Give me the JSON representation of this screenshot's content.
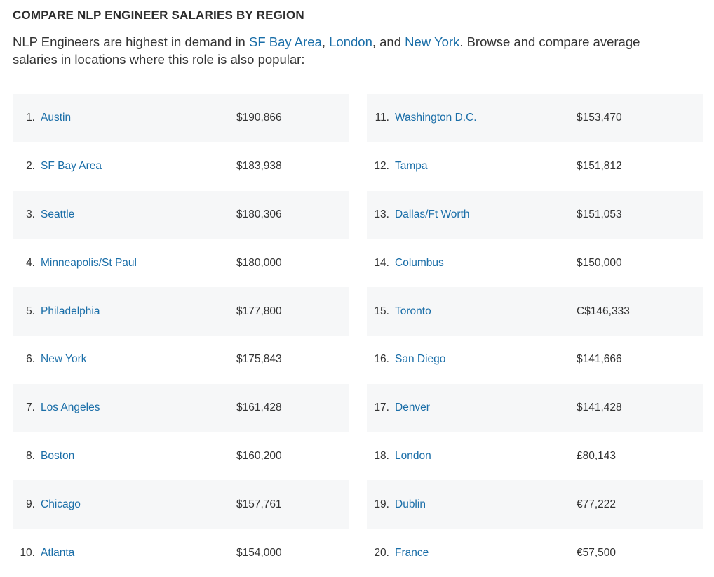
{
  "header": {
    "title": "COMPARE NLP ENGINEER SALARIES BY REGION"
  },
  "intro": {
    "prefix": "NLP Engineers are highest in demand in ",
    "link1": "SF Bay Area",
    "sep1": ", ",
    "link2": "London",
    "sep2": ", and ",
    "link3": "New York",
    "suffix": ". Browse and compare average salaries in locations where this role is also popular:"
  },
  "left_column": [
    {
      "rank": "1.",
      "city": "Austin",
      "salary": "$190,866"
    },
    {
      "rank": "2.",
      "city": "SF Bay Area",
      "salary": "$183,938"
    },
    {
      "rank": "3.",
      "city": "Seattle",
      "salary": "$180,306"
    },
    {
      "rank": "4.",
      "city": "Minneapolis/St Paul",
      "salary": "$180,000"
    },
    {
      "rank": "5.",
      "city": "Philadelphia",
      "salary": "$177,800"
    },
    {
      "rank": "6.",
      "city": "New York",
      "salary": "$175,843"
    },
    {
      "rank": "7.",
      "city": "Los Angeles",
      "salary": "$161,428"
    },
    {
      "rank": "8.",
      "city": "Boston",
      "salary": "$160,200"
    },
    {
      "rank": "9.",
      "city": "Chicago",
      "salary": "$157,761"
    },
    {
      "rank": "10.",
      "city": "Atlanta",
      "salary": "$154,000"
    }
  ],
  "right_column": [
    {
      "rank": "11.",
      "city": "Washington D.C.",
      "salary": "$153,470"
    },
    {
      "rank": "12.",
      "city": "Tampa",
      "salary": "$151,812"
    },
    {
      "rank": "13.",
      "city": "Dallas/Ft Worth",
      "salary": "$151,053"
    },
    {
      "rank": "14.",
      "city": "Columbus",
      "salary": "$150,000"
    },
    {
      "rank": "15.",
      "city": "Toronto",
      "salary": "C$146,333"
    },
    {
      "rank": "16.",
      "city": "San Diego",
      "salary": "$141,666"
    },
    {
      "rank": "17.",
      "city": "Denver",
      "salary": "$141,428"
    },
    {
      "rank": "18.",
      "city": "London",
      "salary": "£80,143"
    },
    {
      "rank": "19.",
      "city": "Dublin",
      "salary": "€77,222"
    },
    {
      "rank": "20.",
      "city": "France",
      "salary": "€57,500"
    }
  ],
  "colors": {
    "link": "#1a6ea8",
    "text": "#333333",
    "shade": "#f6f7f8"
  }
}
